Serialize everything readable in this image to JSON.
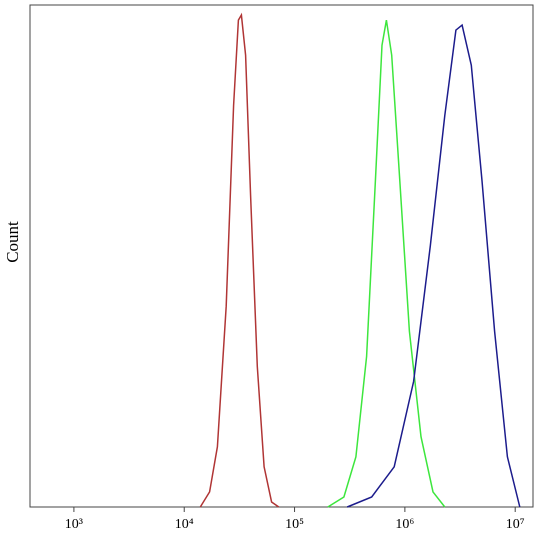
{
  "chart_data": {
    "type": "line",
    "ylabel": "Count",
    "xscale": "log",
    "xlim": [
      400,
      14500000
    ],
    "ylim": [
      0,
      100
    ],
    "xticks": [
      {
        "value": 1000,
        "label": "10³"
      },
      {
        "value": 10000,
        "label": "10⁴"
      },
      {
        "value": 100000,
        "label": "10⁵"
      },
      {
        "value": 1000000,
        "label": "10⁶"
      },
      {
        "value": 10000000,
        "label": "10⁷"
      }
    ],
    "series": [
      {
        "color": "#b03535",
        "x": [
          14000,
          17000,
          20000,
          24000,
          28000,
          31000,
          33000,
          36000,
          40000,
          46000,
          53000,
          62000,
          72000
        ],
        "values": [
          0,
          3,
          12,
          40,
          80,
          97,
          98,
          90,
          62,
          28,
          8,
          1,
          0
        ]
      },
      {
        "color": "#3de63d",
        "x": [
          200000,
          280000,
          360000,
          450000,
          540000,
          620000,
          680000,
          760000,
          900000,
          1100000,
          1400000,
          1800000,
          2300000
        ],
        "values": [
          0,
          2,
          10,
          30,
          65,
          92,
          97,
          90,
          65,
          35,
          14,
          3,
          0
        ]
      },
      {
        "color": "#1c1c8c",
        "x": [
          300000,
          500000,
          800000,
          1200000,
          1700000,
          2300000,
          2900000,
          3300000,
          4000000,
          5000000,
          6500000,
          8500000,
          11000000
        ],
        "values": [
          0,
          2,
          8,
          25,
          52,
          78,
          95,
          96,
          88,
          65,
          35,
          10,
          0
        ]
      }
    ]
  }
}
